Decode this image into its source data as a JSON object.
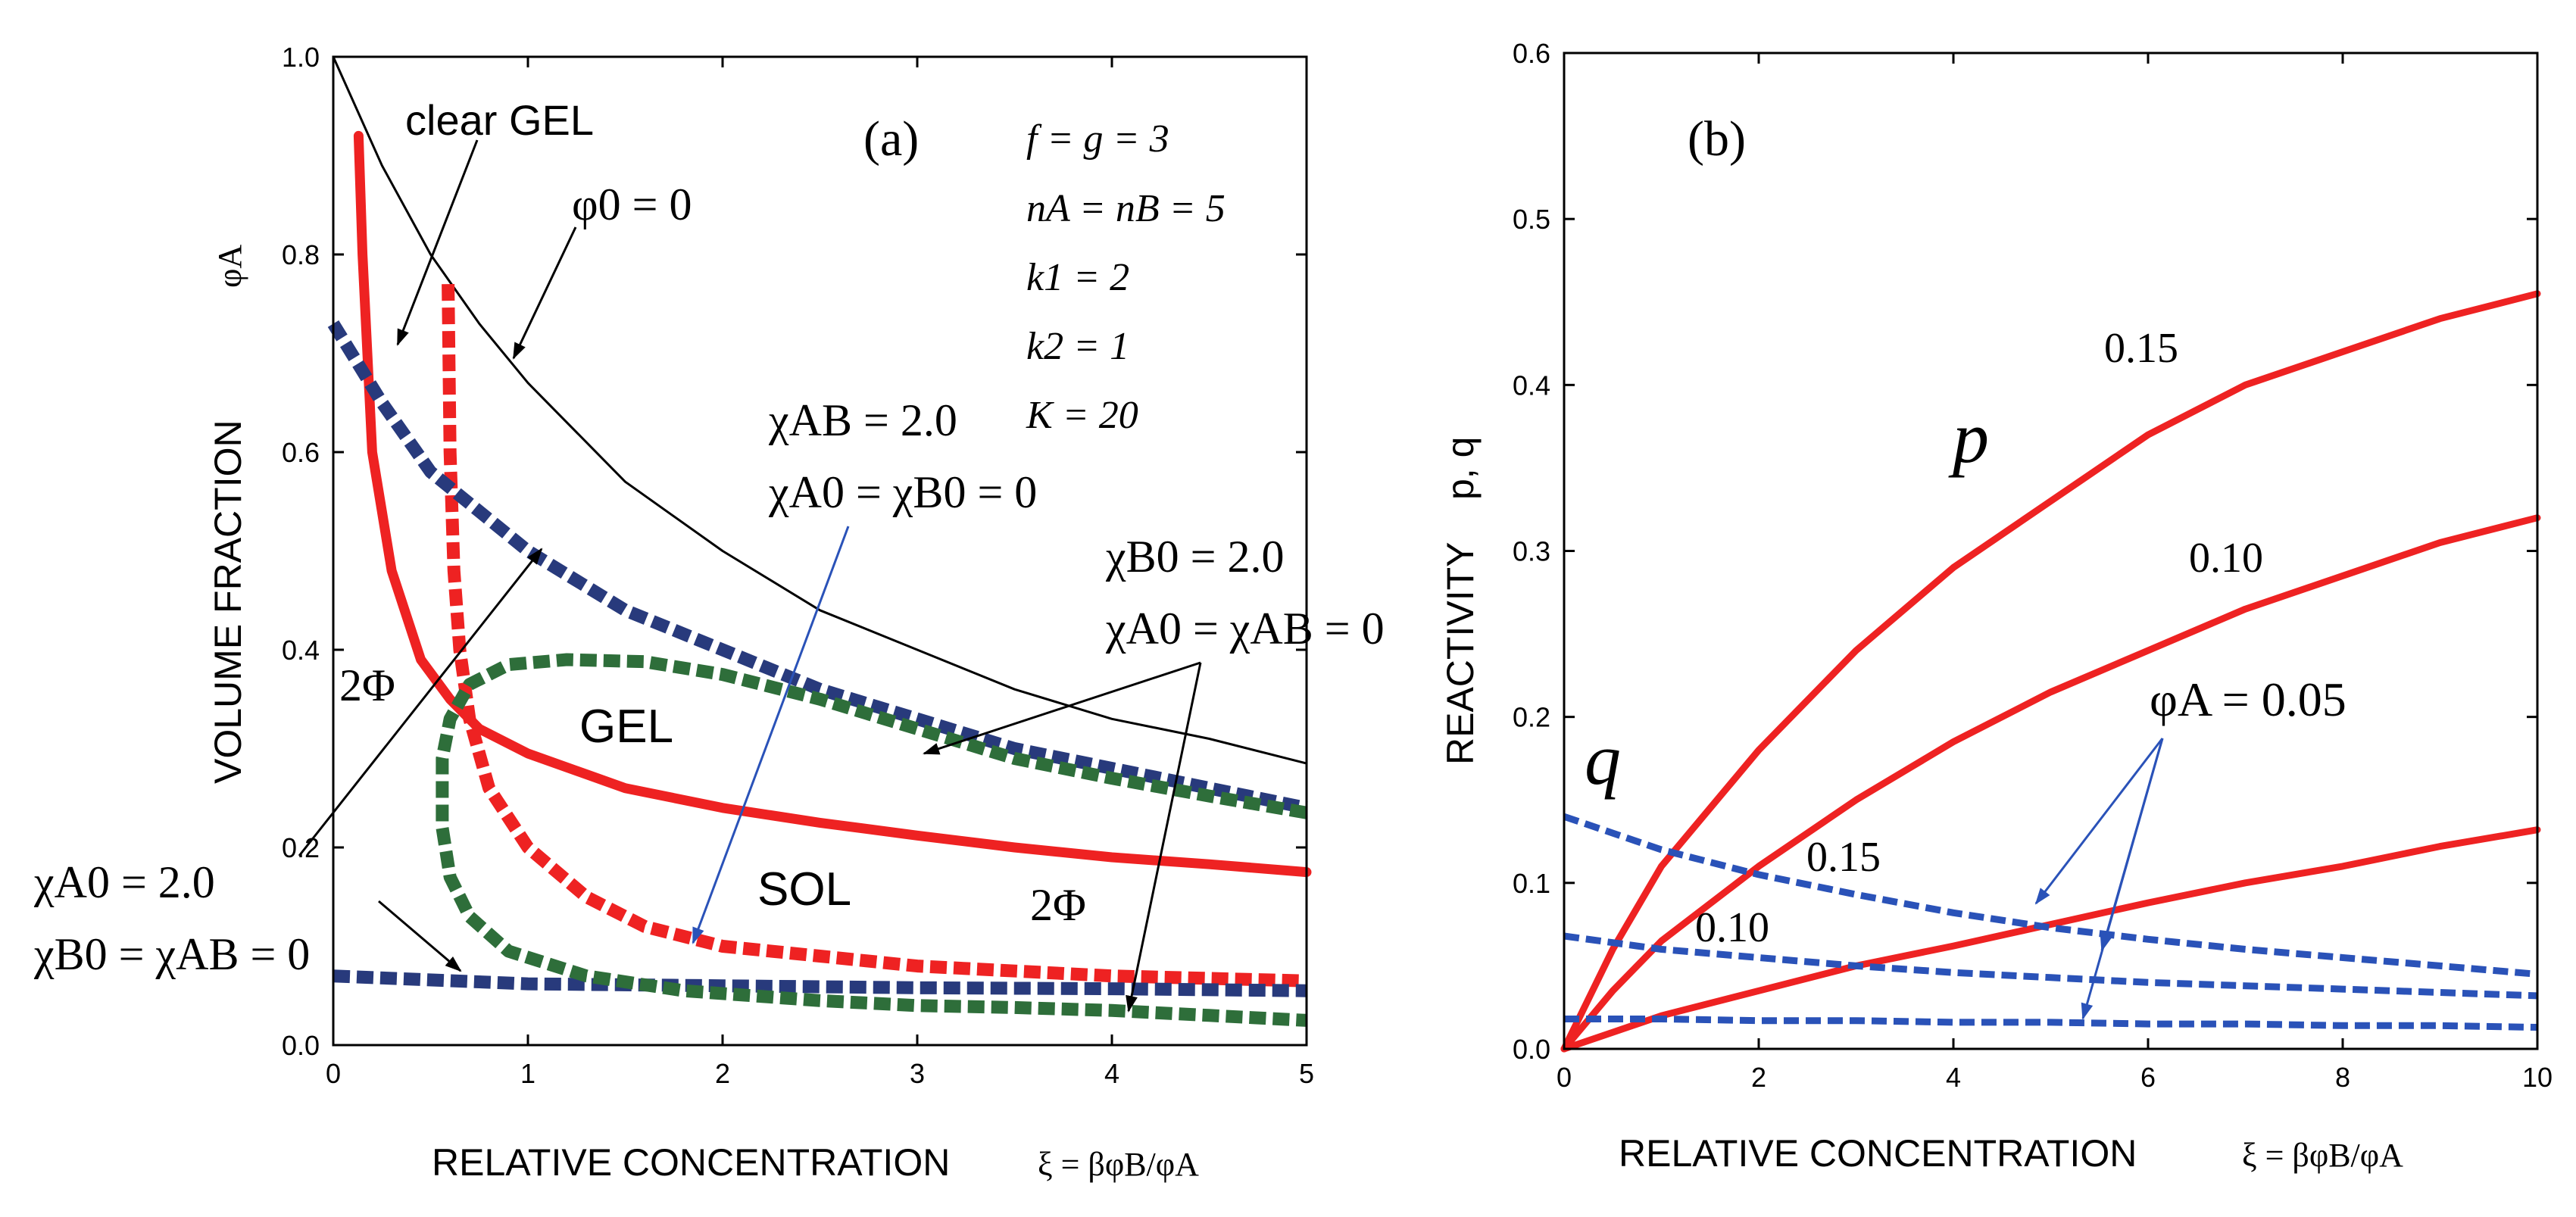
{
  "chart_data": [
    {
      "type": "line",
      "panel_label": "(a)",
      "xlabel": "RELATIVE CONCENTRATION",
      "xlabel_formula": "ξ = βφB/φA",
      "ylabel": "VOLUME FRACTION",
      "ylabel_symbol": "φA",
      "xlim": [
        0,
        5
      ],
      "ylim": [
        0,
        1
      ],
      "x_ticks": [
        "0",
        "1",
        "2",
        "3",
        "4",
        "5"
      ],
      "y_ticks": [
        "0.0",
        "0.2",
        "0.4",
        "0.6",
        "0.8",
        "1.0"
      ],
      "parameters": [
        "f = g = 3",
        "nA = nB = 5",
        "k1 = 2",
        "k2 = 1",
        "K = 20"
      ],
      "region_labels": [
        "clear GEL",
        "GEL",
        "SOL",
        "2Φ",
        "2Φ"
      ],
      "annotations": [
        "φ0 = 0",
        "χAB = 2.0",
        "χA0 = χB0 = 0",
        "χB0 = 2.0",
        "χA0 = χAB = 0",
        "χA0 = 2.0",
        "χB0 = χAB = 0"
      ],
      "series": [
        {
          "name": "φ0 = 0",
          "color": "#000000",
          "style": "thin-solid",
          "x": [
            0,
            0.25,
            0.5,
            0.75,
            1,
            1.5,
            2,
            2.5,
            3,
            3.5,
            4,
            4.5,
            5
          ],
          "y": [
            1.0,
            0.89,
            0.8,
            0.73,
            0.67,
            0.57,
            0.5,
            0.44,
            0.4,
            0.36,
            0.33,
            0.31,
            0.285
          ]
        },
        {
          "name": "χAB = 2.0 gel line",
          "color": "#ee2222",
          "style": "thick-solid",
          "x": [
            0.13,
            0.15,
            0.2,
            0.3,
            0.45,
            0.6,
            0.75,
            1,
            1.5,
            2,
            2.5,
            3,
            3.5,
            4,
            4.5,
            5
          ],
          "y": [
            0.92,
            0.8,
            0.6,
            0.48,
            0.39,
            0.35,
            0.32,
            0.295,
            0.26,
            0.24,
            0.225,
            0.212,
            0.2,
            0.19,
            0.183,
            0.175
          ]
        },
        {
          "name": "χAB = 2.0 coexistence",
          "color": "#ee2222",
          "style": "thick-dashed",
          "x": [
            0.59,
            0.6,
            0.62,
            0.65,
            0.7,
            0.8,
            1,
            1.3,
            1.6,
            2,
            2.5,
            3,
            4,
            5
          ],
          "y": [
            0.77,
            0.6,
            0.48,
            0.4,
            0.33,
            0.26,
            0.2,
            0.15,
            0.12,
            0.1,
            0.09,
            0.08,
            0.07,
            0.065
          ]
        },
        {
          "name": "χA0 = 2.0 upper",
          "color": "#283a7c",
          "style": "thick-dashed",
          "x": [
            0,
            0.25,
            0.5,
            0.75,
            1,
            1.5,
            2,
            2.5,
            3,
            3.5,
            4,
            4.5,
            5
          ],
          "y": [
            0.73,
            0.65,
            0.58,
            0.54,
            0.5,
            0.44,
            0.4,
            0.36,
            0.33,
            0.3,
            0.28,
            0.26,
            0.24
          ]
        },
        {
          "name": "χA0 = 2.0 lower",
          "color": "#283a7c",
          "style": "thick-dashed",
          "x": [
            0,
            1,
            2,
            3,
            4,
            5
          ],
          "y": [
            0.07,
            0.062,
            0.06,
            0.058,
            0.057,
            0.055
          ]
        },
        {
          "name": "χB0 = 2.0 binodal",
          "color": "#2e6e3a",
          "style": "thick-dashed",
          "x": [
            5,
            4.5,
            4,
            3.5,
            3,
            2.5,
            2,
            1.6,
            1.2,
            0.9,
            0.7,
            0.6,
            0.56,
            0.56,
            0.6,
            0.7,
            0.9,
            1.3,
            1.8,
            2.5,
            3,
            3.5,
            4,
            4.5,
            5
          ],
          "y": [
            0.235,
            0.252,
            0.27,
            0.29,
            0.32,
            0.35,
            0.375,
            0.388,
            0.39,
            0.385,
            0.365,
            0.33,
            0.29,
            0.22,
            0.17,
            0.13,
            0.095,
            0.07,
            0.055,
            0.045,
            0.04,
            0.038,
            0.035,
            0.03,
            0.025
          ]
        }
      ]
    },
    {
      "type": "line",
      "panel_label": "(b)",
      "xlabel": "RELATIVE CONCENTRATION",
      "xlabel_formula": "ξ = βφB/φA",
      "ylabel": "REACTIVITY",
      "ylabel_symbol": "p, q",
      "xlim": [
        0,
        10
      ],
      "ylim": [
        0,
        0.6
      ],
      "x_ticks": [
        "0",
        "2",
        "4",
        "6",
        "8",
        "10"
      ],
      "y_ticks": [
        "0.0",
        "0.1",
        "0.2",
        "0.3",
        "0.4",
        "0.5",
        "0.6"
      ],
      "labels": {
        "p": "p",
        "q": "q",
        "phiA": "φA = 0.05",
        "p015": "0.15",
        "p010": "0.10",
        "q015": "0.15",
        "q010": "0.10"
      },
      "series": [
        {
          "name": "p, φA = 0.15",
          "color": "#ee2222",
          "style": "solid",
          "x": [
            0,
            0.5,
            1,
            2,
            3,
            4,
            5,
            6,
            7,
            8,
            9,
            10
          ],
          "y": [
            0,
            0.06,
            0.11,
            0.18,
            0.24,
            0.29,
            0.33,
            0.37,
            0.4,
            0.42,
            0.44,
            0.455
          ]
        },
        {
          "name": "p, φA = 0.10",
          "color": "#ee2222",
          "style": "solid",
          "x": [
            0,
            0.5,
            1,
            2,
            3,
            4,
            5,
            6,
            7,
            8,
            9,
            10
          ],
          "y": [
            0,
            0.035,
            0.065,
            0.11,
            0.15,
            0.185,
            0.215,
            0.24,
            0.265,
            0.285,
            0.305,
            0.32
          ]
        },
        {
          "name": "p, φA = 0.05",
          "color": "#ee2222",
          "style": "solid",
          "x": [
            0,
            0.5,
            1,
            2,
            3,
            4,
            5,
            6,
            7,
            8,
            9,
            10
          ],
          "y": [
            0,
            0.01,
            0.02,
            0.035,
            0.05,
            0.062,
            0.075,
            0.088,
            0.1,
            0.11,
            0.122,
            0.132
          ]
        },
        {
          "name": "q, φA = 0.15",
          "color": "#2a52b8",
          "style": "dashed",
          "x": [
            0,
            0.5,
            1,
            2,
            3,
            4,
            5,
            6,
            7,
            8,
            9,
            10
          ],
          "y": [
            0.14,
            0.13,
            0.12,
            0.105,
            0.093,
            0.082,
            0.073,
            0.066,
            0.06,
            0.055,
            0.05,
            0.045
          ]
        },
        {
          "name": "q, φA = 0.10",
          "color": "#2a52b8",
          "style": "dashed",
          "x": [
            0,
            0.5,
            1,
            2,
            3,
            4,
            5,
            6,
            7,
            8,
            9,
            10
          ],
          "y": [
            0.068,
            0.064,
            0.06,
            0.055,
            0.05,
            0.046,
            0.043,
            0.04,
            0.038,
            0.036,
            0.034,
            0.032
          ]
        },
        {
          "name": "q, φA = 0.05",
          "color": "#2a52b8",
          "style": "dashed",
          "x": [
            0,
            1,
            2,
            3,
            4,
            5,
            6,
            7,
            8,
            9,
            10
          ],
          "y": [
            0.018,
            0.018,
            0.017,
            0.017,
            0.016,
            0.016,
            0.015,
            0.015,
            0.014,
            0.014,
            0.013
          ]
        }
      ]
    }
  ]
}
